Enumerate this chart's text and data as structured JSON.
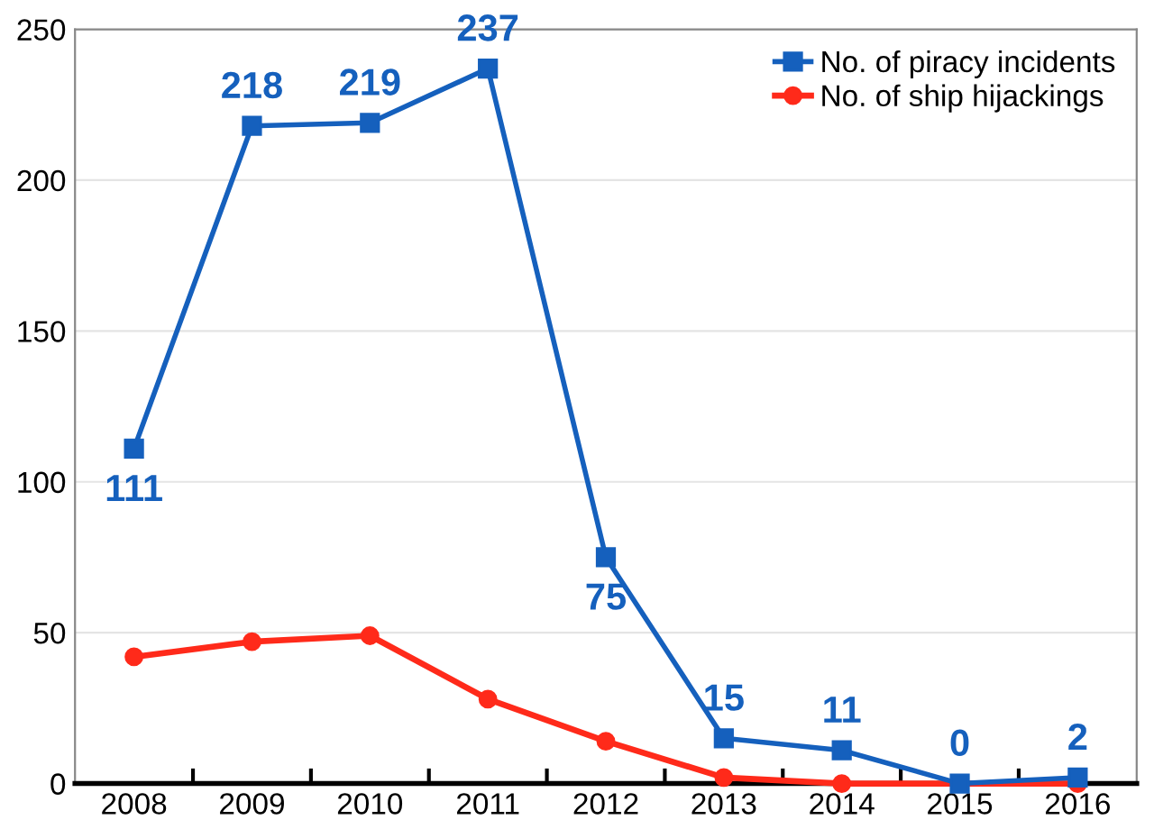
{
  "chart_data": {
    "type": "line",
    "categories": [
      "2008",
      "2009",
      "2010",
      "2011",
      "2012",
      "2013",
      "2014",
      "2015",
      "2016"
    ],
    "series": [
      {
        "name": "No. of piracy incidents",
        "color": "#1560bd",
        "marker": "square",
        "values": [
          111,
          218,
          219,
          237,
          75,
          15,
          11,
          0,
          2
        ],
        "value_labels": [
          "111",
          "218",
          "219",
          "237",
          "75",
          "15",
          "11",
          "0",
          "2"
        ]
      },
      {
        "name": "No. of ship hijackings",
        "color": "#ff2a1a",
        "marker": "circle",
        "values": [
          42,
          47,
          49,
          28,
          14,
          2,
          0,
          0,
          0
        ]
      }
    ],
    "ylim": [
      0,
      250
    ],
    "yticks": [
      0,
      50,
      100,
      150,
      200,
      250
    ],
    "grid": "y",
    "legend": "top right",
    "line_style": "solid"
  }
}
